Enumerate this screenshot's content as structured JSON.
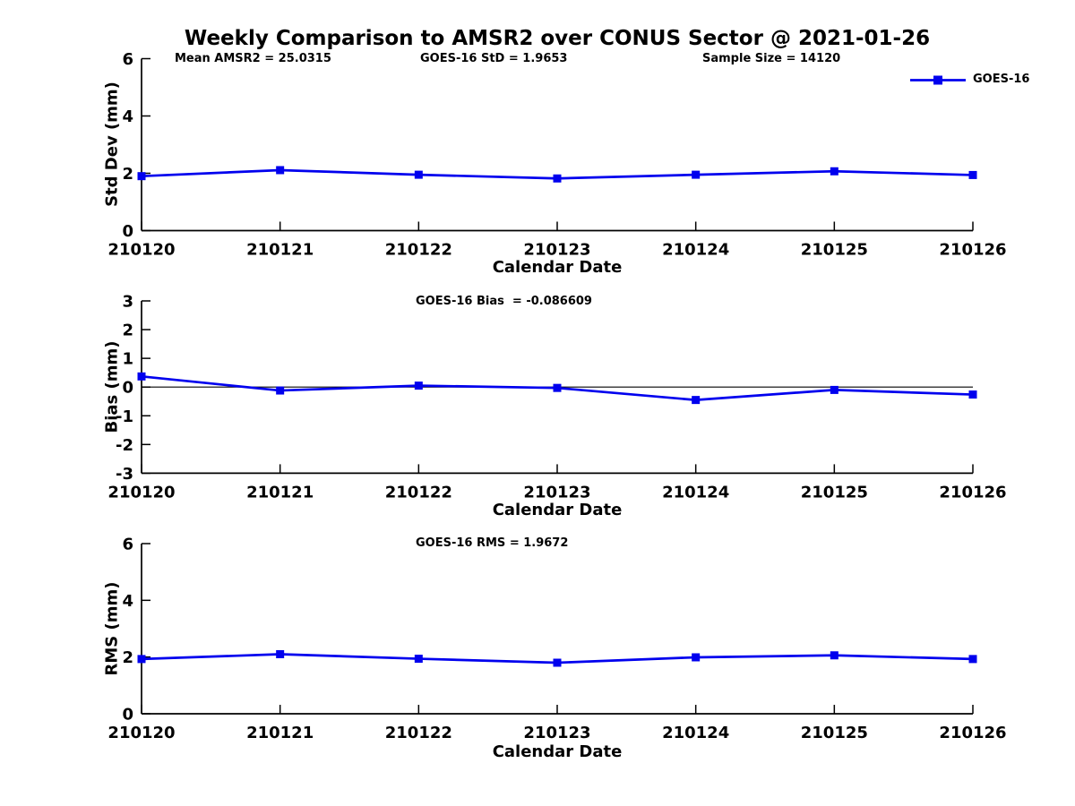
{
  "figure": {
    "title": "Weekly Comparison to AMSR2 over CONUS Sector @ 2021-01-26",
    "background": "#ffffff",
    "text_color": "#000000"
  },
  "legend": {
    "label": "GOES-16",
    "color": "#0000ee",
    "position": "top-right"
  },
  "chart_data": [
    {
      "type": "line",
      "name": "std-dev",
      "title": "",
      "annotations": [
        "Mean AMSR2 = 25.0315",
        "GOES-16 StD = 1.9653",
        "Sample Size = 14120"
      ],
      "categories": [
        "210120",
        "210121",
        "210122",
        "210123",
        "210124",
        "210125",
        "210126"
      ],
      "series": [
        {
          "name": "GOES-16",
          "color": "#0000ee",
          "marker": "square",
          "values": [
            1.9,
            2.11,
            1.95,
            1.82,
            1.95,
            2.07,
            1.94
          ]
        }
      ],
      "xlabel": "Calendar Date",
      "ylabel": "Std Dev (mm)",
      "ylim": [
        0,
        6
      ],
      "yticks": [
        0,
        2,
        4,
        6
      ],
      "grid": false,
      "zero_line": false,
      "legend_visible": true
    },
    {
      "type": "line",
      "name": "bias",
      "title": "GOES-16 Bias  = -0.086609",
      "annotations": [],
      "categories": [
        "210120",
        "210121",
        "210122",
        "210123",
        "210124",
        "210125",
        "210126"
      ],
      "series": [
        {
          "name": "GOES-16",
          "color": "#0000ee",
          "marker": "square",
          "values": [
            0.37,
            -0.12,
            0.05,
            -0.03,
            -0.45,
            -0.1,
            -0.26
          ]
        }
      ],
      "xlabel": "Calendar Date",
      "ylabel": "Bias (mm)",
      "ylim": [
        -3,
        3
      ],
      "yticks": [
        -3,
        -2,
        -1,
        0,
        1,
        2,
        3
      ],
      "grid": false,
      "zero_line": true,
      "legend_visible": false
    },
    {
      "type": "line",
      "name": "rms",
      "title": "GOES-16 RMS = 1.9672",
      "annotations": [],
      "categories": [
        "210120",
        "210121",
        "210122",
        "210123",
        "210124",
        "210125",
        "210126"
      ],
      "series": [
        {
          "name": "GOES-16",
          "color": "#0000ee",
          "marker": "square",
          "values": [
            1.93,
            2.1,
            1.94,
            1.8,
            1.99,
            2.06,
            1.93
          ]
        }
      ],
      "xlabel": "Calendar Date",
      "ylabel": "RMS (mm)",
      "ylim": [
        0,
        6
      ],
      "yticks": [
        0,
        2,
        4,
        6
      ],
      "grid": false,
      "zero_line": false,
      "legend_visible": false
    }
  ]
}
